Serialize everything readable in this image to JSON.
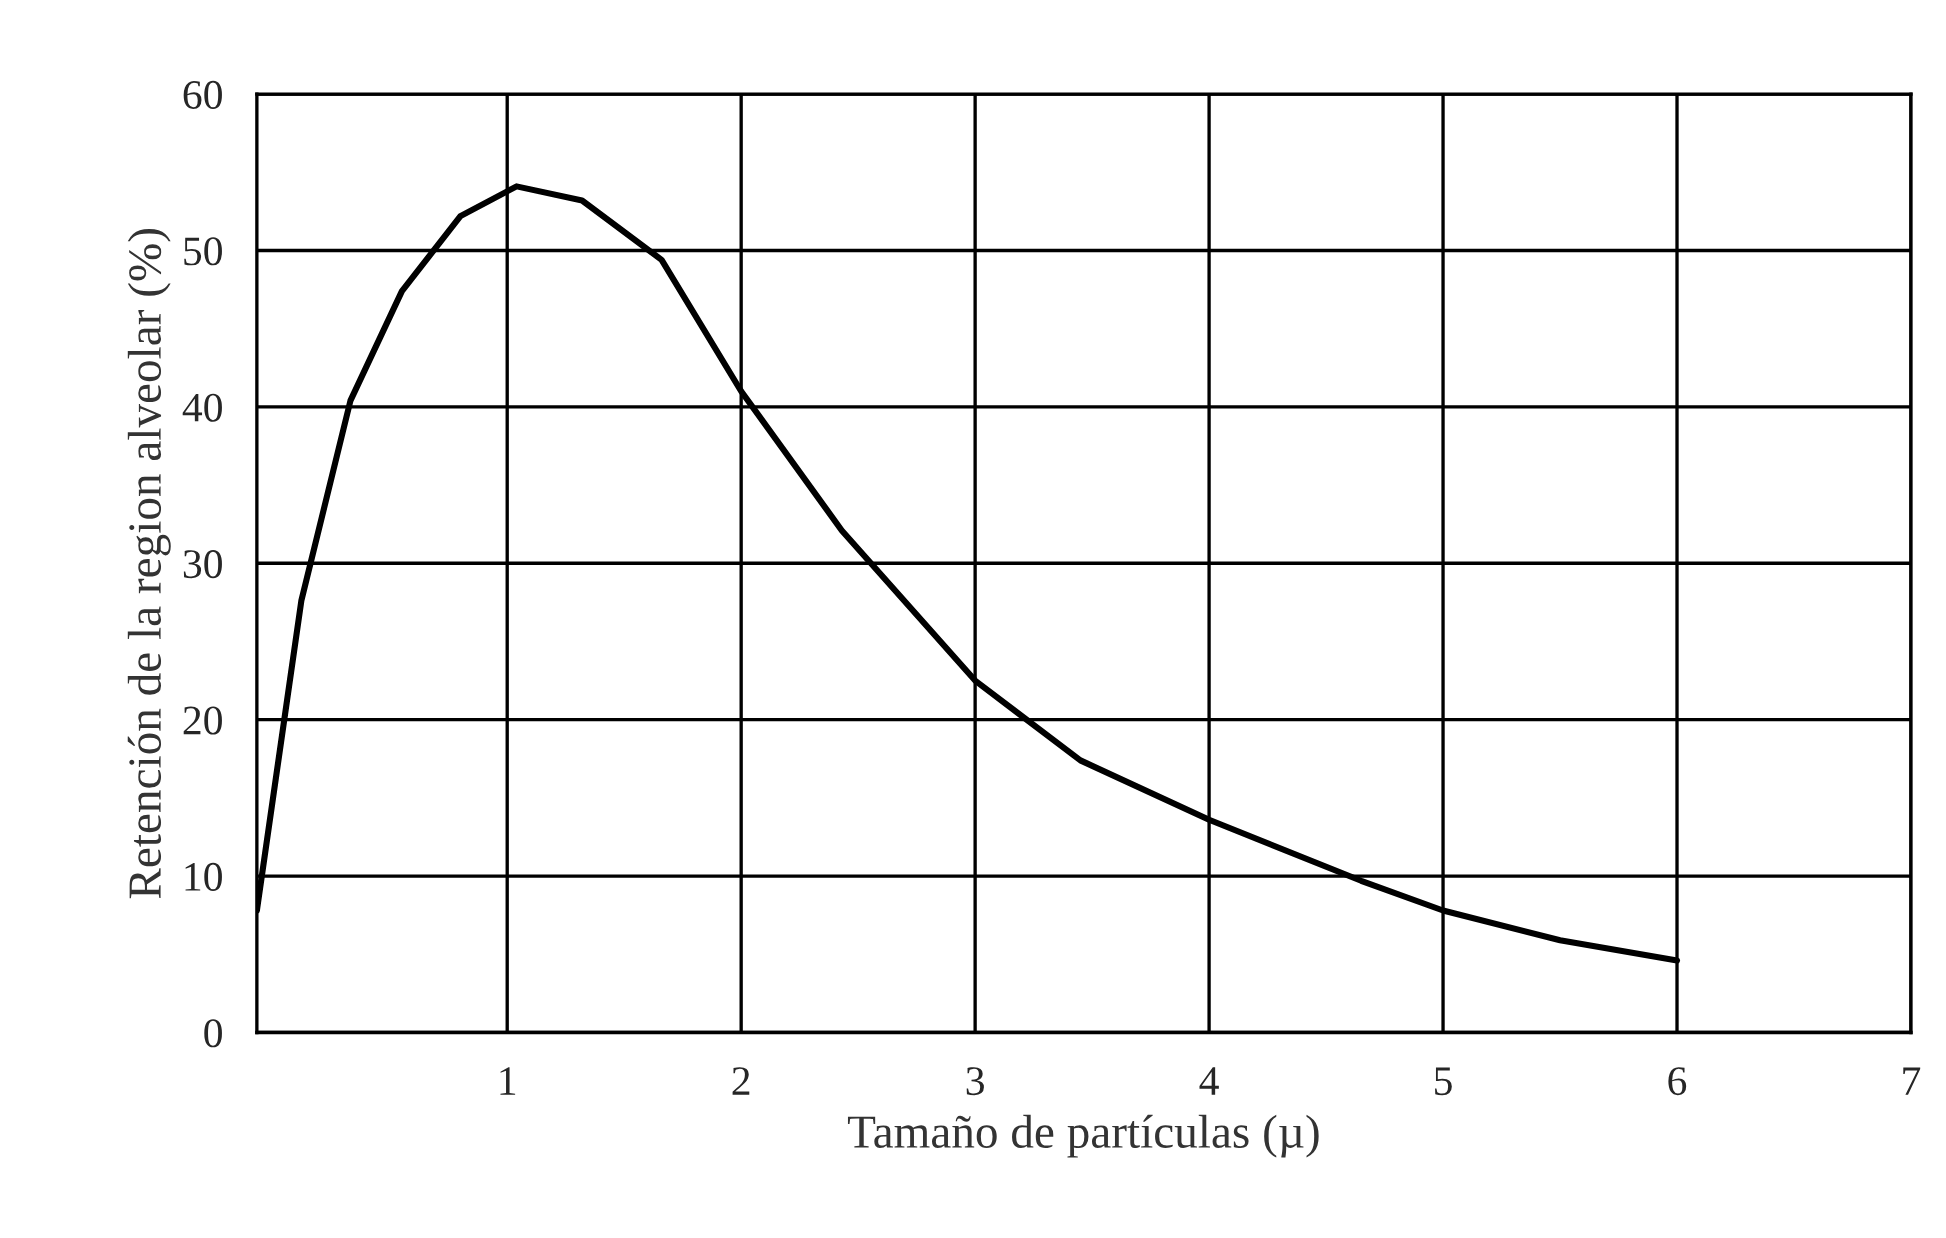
{
  "chart_data": {
    "type": "line",
    "xlabel": "Tamaño de partículas (µ)",
    "ylabel": "Retención de la region alveolar (%)",
    "x": [
      -0.07,
      0.12,
      0.33,
      0.55,
      0.8,
      1.04,
      1.32,
      1.66,
      2,
      2.43,
      3,
      3.45,
      4,
      4.65,
      5,
      5.5,
      6
    ],
    "series": [
      {
        "color": "#000000",
        "values": [
          7.8,
          27.6,
          40.4,
          47.4,
          52.2,
          54.1,
          53.2,
          49.4,
          41,
          32.1,
          22.5,
          17.4,
          13.6,
          9.7,
          7.8,
          5.9,
          4.6
        ]
      }
    ],
    "xlim": [
      -0.07,
      7
    ],
    "xticks": [
      1,
      2,
      3,
      4,
      5,
      6,
      7
    ],
    "ylim": [
      0,
      60
    ],
    "yticks": [
      0,
      10,
      20,
      30,
      40,
      50,
      60
    ],
    "grid": true,
    "legend": false,
    "marker": "none",
    "line_style": "solid"
  }
}
